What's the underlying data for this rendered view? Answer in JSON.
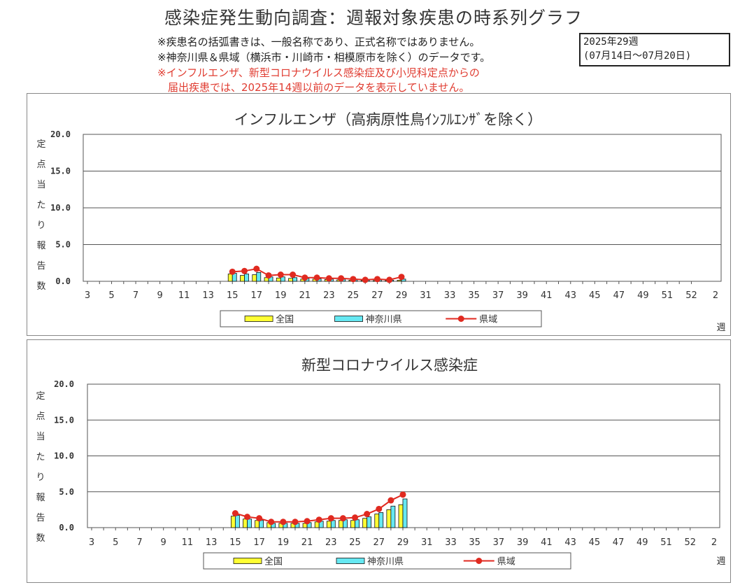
{
  "header": {
    "title": "感染症発生動向調査：週報対象疾患の時系列グラフ",
    "notes": [
      "※疾患名の括弧書きは、一般名称であり、正式名称ではありません。",
      "※神奈川県＆県域（横浜市・川崎市・相模原市を除く）のデータです。"
    ],
    "red_notes": [
      "※インフルエンザ、新型コロナウイルス感染症及び小児科定点からの",
      "　届出疾患では、2025年14週以前のデータを表示していません。"
    ],
    "week_box": [
      "2025年29週",
      "(07月14日～07月20日)"
    ]
  },
  "colors": {
    "national": "#ffff33",
    "kanagawa": "#66e8f2",
    "prefecture": "#e02a20",
    "grid": "#555555"
  },
  "legend": {
    "national": "全国",
    "kanagawa": "神奈川県",
    "prefecture": "県域"
  },
  "chart_data": [
    {
      "type": "bar",
      "title": "インフルエンザ（高病原性鳥ｲﾝﾌﾙｴﾝｻﾞを除く）",
      "ylabel": "定点当たり報告数",
      "xlabel": "週",
      "ylim": [
        0,
        20
      ],
      "yticks": [
        "20.0",
        "15.0",
        "10.0",
        "5.0",
        "0.0"
      ],
      "x_ticks": [
        "3",
        "5",
        "7",
        "9",
        "11",
        "13",
        "15",
        "17",
        "19",
        "21",
        "23",
        "25",
        "27",
        "29",
        "31",
        "33",
        "35",
        "37",
        "39",
        "41",
        "43",
        "45",
        "47",
        "49",
        "51",
        "52",
        "2"
      ],
      "weeks": [
        15,
        16,
        17,
        18,
        19,
        20,
        21,
        22,
        23,
        24,
        25,
        26,
        27,
        28,
        29
      ],
      "series": [
        {
          "name": "全国",
          "type": "bar",
          "values": [
            1.0,
            0.8,
            0.9,
            0.5,
            0.45,
            0.4,
            0.3,
            0.3,
            0.25,
            0.2,
            0.15,
            0.1,
            0.1,
            0.1,
            0.15
          ]
        },
        {
          "name": "神奈川県",
          "type": "bar",
          "values": [
            1.1,
            1.0,
            1.2,
            0.6,
            0.6,
            0.5,
            0.4,
            0.35,
            0.3,
            0.3,
            0.2,
            0.15,
            0.2,
            0.15,
            0.3
          ]
        },
        {
          "name": "県域",
          "type": "line",
          "values": [
            1.3,
            1.4,
            1.7,
            0.8,
            0.9,
            0.9,
            0.5,
            0.5,
            0.4,
            0.4,
            0.3,
            0.2,
            0.3,
            0.2,
            0.6
          ]
        }
      ]
    },
    {
      "type": "bar",
      "title": "新型コロナウイルス感染症",
      "ylabel": "定点当たり報告数",
      "xlabel": "週",
      "ylim": [
        0,
        20
      ],
      "yticks": [
        "20.0",
        "15.0",
        "10.0",
        "5.0",
        "0.0"
      ],
      "x_ticks": [
        "3",
        "5",
        "7",
        "9",
        "11",
        "13",
        "15",
        "17",
        "19",
        "21",
        "23",
        "25",
        "27",
        "29",
        "31",
        "33",
        "35",
        "37",
        "39",
        "41",
        "43",
        "45",
        "47",
        "49",
        "51",
        "52",
        "2"
      ],
      "weeks": [
        15,
        16,
        17,
        18,
        19,
        20,
        21,
        22,
        23,
        24,
        25,
        26,
        27,
        28,
        29
      ],
      "series": [
        {
          "name": "全国",
          "type": "bar",
          "values": [
            1.6,
            1.2,
            1.0,
            0.7,
            0.6,
            0.6,
            0.6,
            0.8,
            0.9,
            1.0,
            1.0,
            1.3,
            1.9,
            2.5,
            3.2
          ]
        },
        {
          "name": "神奈川県",
          "type": "bar",
          "values": [
            1.7,
            1.2,
            1.0,
            0.6,
            0.6,
            0.6,
            0.7,
            0.9,
            1.0,
            1.1,
            1.1,
            1.5,
            2.1,
            3.0,
            4.0
          ]
        },
        {
          "name": "県域",
          "type": "line",
          "values": [
            2.0,
            1.5,
            1.3,
            0.8,
            0.8,
            0.8,
            0.9,
            1.1,
            1.3,
            1.3,
            1.4,
            1.9,
            2.6,
            3.8,
            4.6
          ]
        }
      ]
    }
  ]
}
